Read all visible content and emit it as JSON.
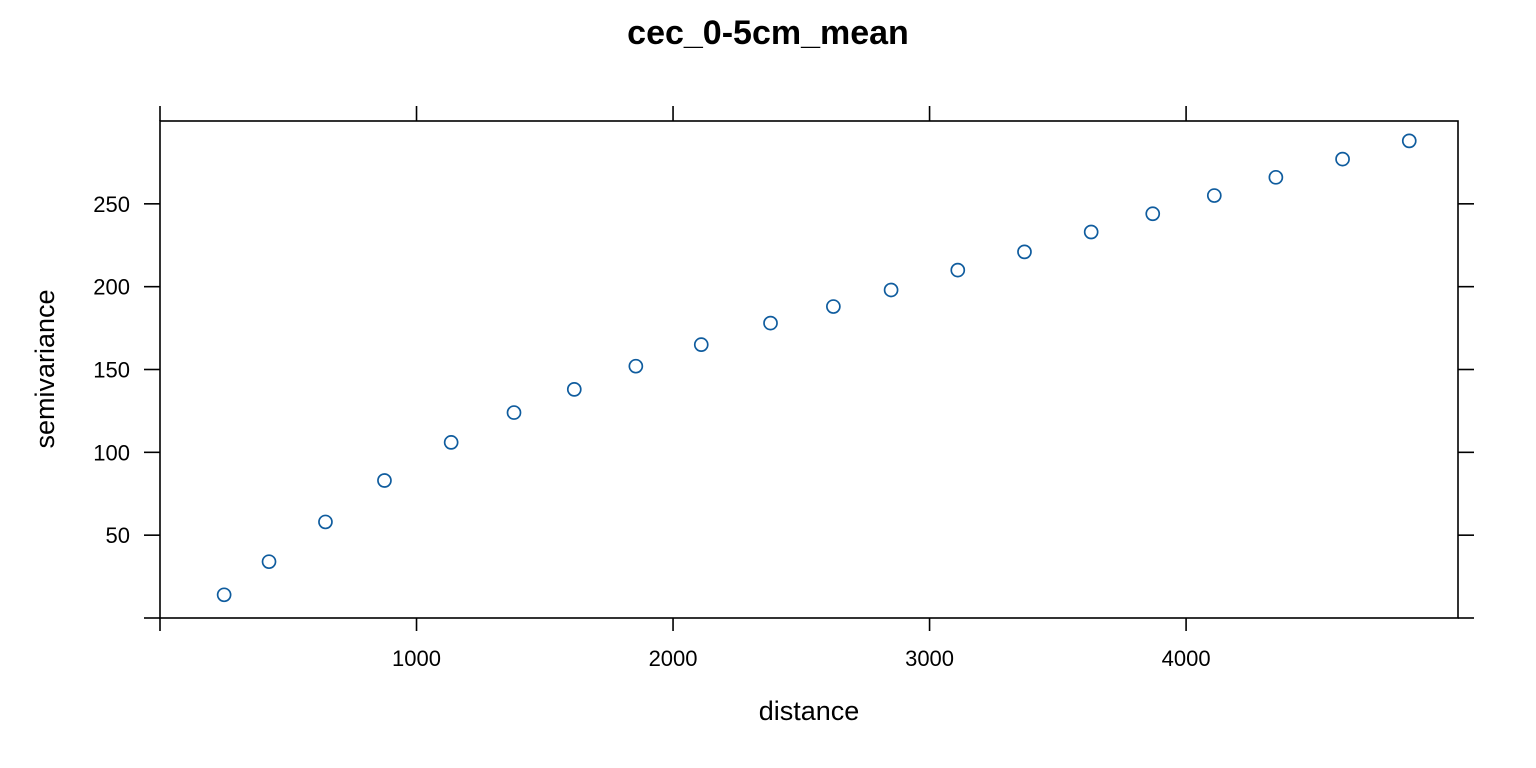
{
  "chart_data": {
    "type": "scatter",
    "title": "cec_0-5cm_mean",
    "xlabel": "distance",
    "ylabel": "semivariance",
    "xlim": [
      0,
      5060
    ],
    "ylim": [
      0,
      300
    ],
    "x_ticks": [
      1000,
      2000,
      3000,
      4000
    ],
    "y_ticks": [
      50,
      100,
      150,
      200,
      250
    ],
    "grid": false,
    "legend": "none",
    "point_color": "#0f5c9e",
    "series": [
      {
        "x": [
          250,
          425,
          645,
          875,
          1135,
          1380,
          1615,
          1855,
          2110,
          2380,
          2625,
          2850,
          3110,
          3370,
          3630,
          3870,
          4110,
          4350,
          4610,
          4870
        ],
        "y": [
          14,
          34,
          58,
          83,
          106,
          124,
          138,
          152,
          165,
          178,
          188,
          198,
          210,
          221,
          233,
          244,
          255,
          266,
          277,
          288
        ]
      }
    ]
  }
}
